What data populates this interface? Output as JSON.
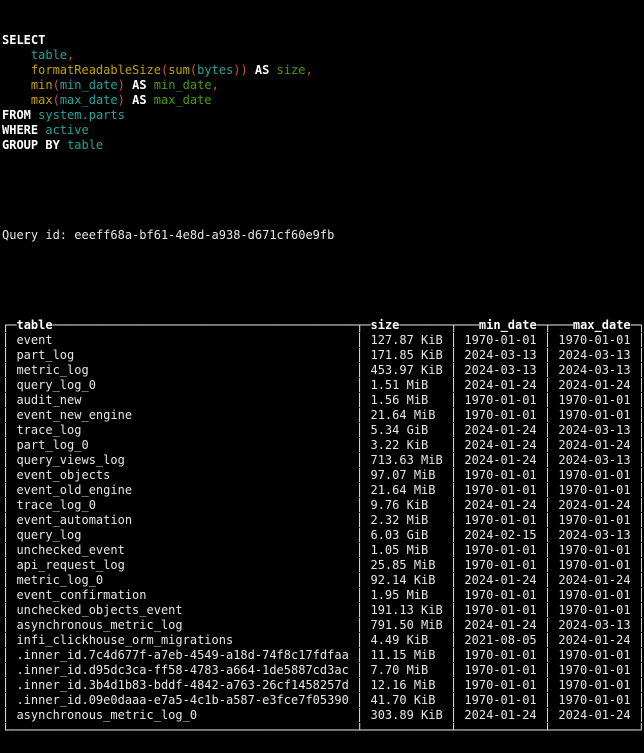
{
  "colors": {
    "background": "#000000",
    "default_text": "#e6e6e6",
    "keyword": "#ffffff",
    "identifier": "#2aa198",
    "function": "#c4a000",
    "alias": "#4e9a06",
    "punctuation": "#cc5533",
    "table_border": "#e6e6e6",
    "table_header": "#ffffff"
  },
  "sql_query": {
    "text": "SELECT\n    table,\n    formatReadableSize(sum(bytes)) AS size,\n    min(min_date) AS min_date,\n    max(max_date) AS max_date\nFROM system.parts\nWHERE active\nGROUP BY table",
    "lines": [
      [
        [
          "k",
          "SELECT"
        ]
      ],
      [
        [
          "t",
          "    "
        ],
        [
          "i",
          "table"
        ],
        [
          "p",
          ","
        ]
      ],
      [
        [
          "t",
          "    "
        ],
        [
          "f",
          "formatReadableSize"
        ],
        [
          "p",
          "("
        ],
        [
          "f",
          "sum"
        ],
        [
          "p",
          "("
        ],
        [
          "i",
          "bytes"
        ],
        [
          "p",
          "))"
        ],
        [
          "t",
          " "
        ],
        [
          "k",
          "AS"
        ],
        [
          "t",
          " "
        ],
        [
          "a",
          "size"
        ],
        [
          "p",
          ","
        ]
      ],
      [
        [
          "t",
          "    "
        ],
        [
          "f",
          "min"
        ],
        [
          "p",
          "("
        ],
        [
          "i",
          "min_date"
        ],
        [
          "p",
          ")"
        ],
        [
          "t",
          " "
        ],
        [
          "k",
          "AS"
        ],
        [
          "t",
          " "
        ],
        [
          "a",
          "min_date"
        ],
        [
          "p",
          ","
        ]
      ],
      [
        [
          "t",
          "    "
        ],
        [
          "f",
          "max"
        ],
        [
          "p",
          "("
        ],
        [
          "i",
          "max_date"
        ],
        [
          "p",
          ")"
        ],
        [
          "t",
          " "
        ],
        [
          "k",
          "AS"
        ],
        [
          "t",
          " "
        ],
        [
          "a",
          "max_date"
        ]
      ],
      [
        [
          "k",
          "FROM"
        ],
        [
          "t",
          " "
        ],
        [
          "i",
          "system.parts"
        ]
      ],
      [
        [
          "k",
          "WHERE"
        ],
        [
          "t",
          " "
        ],
        [
          "i",
          "active"
        ]
      ],
      [
        [
          "k",
          "GROUP BY"
        ],
        [
          "t",
          " "
        ],
        [
          "i",
          "table"
        ]
      ]
    ]
  },
  "query_id": {
    "label": "Query id:",
    "value": "eeeff68a-bf61-4e8d-a938-d671cf60e9fb"
  },
  "result_table": {
    "columns": [
      {
        "name": "table",
        "align": "left",
        "width": 46
      },
      {
        "name": "size",
        "align": "left",
        "width": 10
      },
      {
        "name": "min_date",
        "align": "right",
        "width": 10
      },
      {
        "name": "max_date",
        "align": "right",
        "width": 10
      }
    ],
    "rows": [
      [
        "event",
        "127.87 KiB",
        "1970-01-01",
        "1970-01-01"
      ],
      [
        "part_log",
        "171.85 KiB",
        "2024-03-13",
        "2024-03-13"
      ],
      [
        "metric_log",
        "453.97 KiB",
        "2024-03-13",
        "2024-03-13"
      ],
      [
        "query_log_0",
        "1.51 MiB",
        "2024-01-24",
        "2024-01-24"
      ],
      [
        "audit_new",
        "1.56 MiB",
        "1970-01-01",
        "1970-01-01"
      ],
      [
        "event_new_engine",
        "21.64 MiB",
        "1970-01-01",
        "1970-01-01"
      ],
      [
        "trace_log",
        "5.34 GiB",
        "2024-01-24",
        "2024-03-13"
      ],
      [
        "part_log_0",
        "3.22 KiB",
        "2024-01-24",
        "2024-01-24"
      ],
      [
        "query_views_log",
        "713.63 MiB",
        "2024-01-24",
        "2024-03-13"
      ],
      [
        "event_objects",
        "97.07 MiB",
        "1970-01-01",
        "1970-01-01"
      ],
      [
        "event_old_engine",
        "21.64 MiB",
        "1970-01-01",
        "1970-01-01"
      ],
      [
        "trace_log_0",
        "9.76 KiB",
        "2024-01-24",
        "2024-01-24"
      ],
      [
        "event_automation",
        "2.32 MiB",
        "1970-01-01",
        "1970-01-01"
      ],
      [
        "query_log",
        "6.03 GiB",
        "2024-02-15",
        "2024-03-13"
      ],
      [
        "unchecked_event",
        "1.05 MiB",
        "1970-01-01",
        "1970-01-01"
      ],
      [
        "api_request_log",
        "25.85 MiB",
        "1970-01-01",
        "1970-01-01"
      ],
      [
        "metric_log_0",
        "92.14 KiB",
        "2024-01-24",
        "2024-01-24"
      ],
      [
        "event_confirmation",
        "1.95 MiB",
        "1970-01-01",
        "1970-01-01"
      ],
      [
        "unchecked_objects_event",
        "191.13 KiB",
        "1970-01-01",
        "1970-01-01"
      ],
      [
        "asynchronous_metric_log",
        "791.50 MiB",
        "2024-01-24",
        "2024-03-13"
      ],
      [
        "infi_clickhouse_orm_migrations",
        "4.49 KiB",
        "2021-08-05",
        "2024-01-24"
      ],
      [
        ".inner_id.7c4d677f-a7eb-4549-a18d-74f8c17fdfaa",
        "11.15 MiB",
        "1970-01-01",
        "1970-01-01"
      ],
      [
        ".inner_id.d95dc3ca-ff58-4783-a664-1de5887cd3ac",
        "7.70 MiB",
        "1970-01-01",
        "1970-01-01"
      ],
      [
        ".inner_id.3b4d1b83-bddf-4842-a763-26cf1458257d",
        "12.16 MiB",
        "1970-01-01",
        "1970-01-01"
      ],
      [
        ".inner_id.09e0daaa-e7a5-4c1b-a587-e3fce7f05390",
        "41.70 KiB",
        "1970-01-01",
        "1970-01-01"
      ],
      [
        "asynchronous_metric_log_0",
        "303.89 KiB",
        "2024-01-24",
        "2024-01-24"
      ]
    ]
  }
}
